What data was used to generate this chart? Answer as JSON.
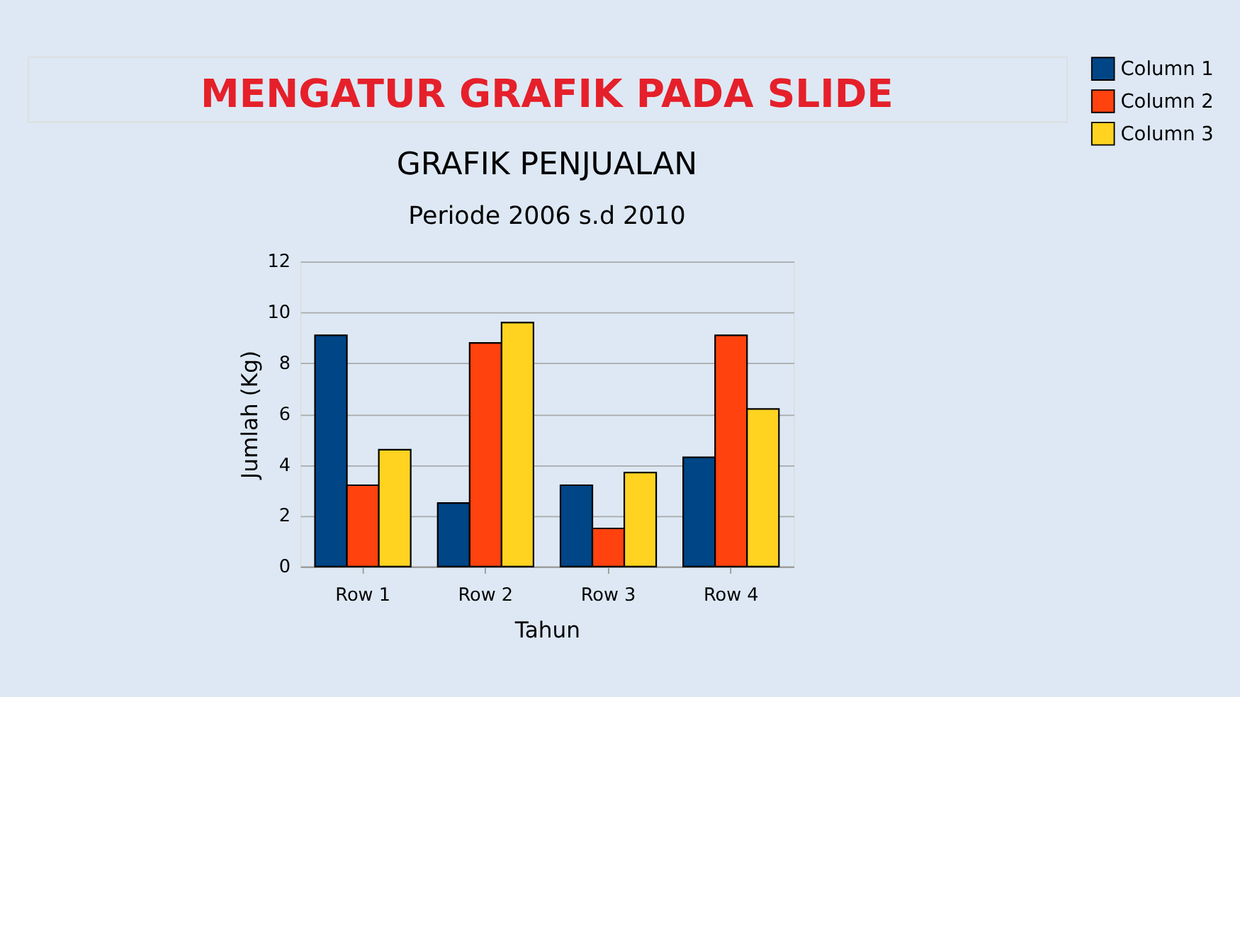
{
  "chart_data": {
    "type": "bar",
    "title": "GRAFIK PENJUALAN",
    "subtitle": "Periode 2006 s.d 2010",
    "annotations": [
      "MENGATUR GRAFIK PADA SLIDE"
    ],
    "xlabel": "Tahun",
    "ylabel": "Jumlah (Kg)",
    "categories": [
      "Row 1",
      "Row 2",
      "Row 3",
      "Row 4"
    ],
    "series": [
      {
        "name": "Column 1",
        "color": "#004586",
        "values": [
          9.1,
          2.5,
          3.2,
          4.3
        ]
      },
      {
        "name": "Column 2",
        "color": "#ff420e",
        "values": [
          3.2,
          8.8,
          1.5,
          9.1
        ]
      },
      {
        "name": "Column 3",
        "color": "#ffd320",
        "values": [
          4.6,
          9.6,
          3.7,
          6.2
        ]
      }
    ],
    "ylim": [
      0,
      12
    ],
    "yticks": [
      0,
      2,
      4,
      6,
      8,
      10,
      12
    ],
    "grid": "y",
    "legend": "right"
  }
}
